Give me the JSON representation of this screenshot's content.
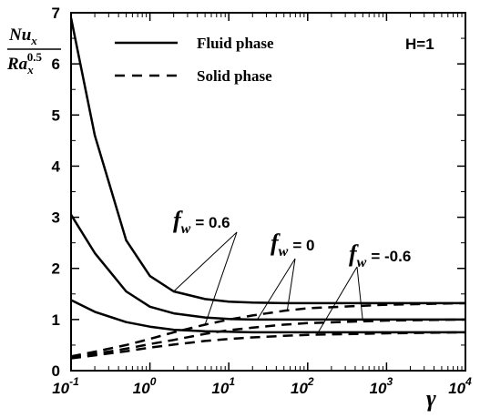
{
  "chart_data": {
    "type": "line",
    "xscale": "log",
    "xlim": [
      0.1,
      10000
    ],
    "ylim": [
      0,
      7
    ],
    "xlabel": "γ",
    "ylabel": {
      "numerator": "Nu",
      "numerator_sub": "x",
      "denominator": "Ra",
      "denominator_sub": "x",
      "denominator_sup": "0.5"
    },
    "yticks": [
      0,
      1,
      2,
      3,
      4,
      5,
      6,
      7
    ],
    "xticks": [
      {
        "value": 0.1,
        "base": "10",
        "exp": "-1"
      },
      {
        "value": 1,
        "base": "10",
        "exp": "0"
      },
      {
        "value": 10,
        "base": "10",
        "exp": "1"
      },
      {
        "value": 100,
        "base": "10",
        "exp": "2"
      },
      {
        "value": 1000,
        "base": "10",
        "exp": "3"
      },
      {
        "value": 10000,
        "base": "10",
        "exp": "4"
      }
    ],
    "legend": {
      "position": "top-left",
      "entries": [
        {
          "label": "Fluid phase",
          "style": "solid"
        },
        {
          "label": "Solid phase",
          "style": "dashed"
        }
      ]
    },
    "parameter_label": "H=1",
    "annotations": [
      {
        "symbol": "f",
        "sub": "w",
        "text": "= 0.6"
      },
      {
        "symbol": "f",
        "sub": "w",
        "text": "= 0"
      },
      {
        "symbol": "f",
        "sub": "w",
        "text": "= -0.6"
      }
    ],
    "x": [
      0.1,
      0.2,
      0.5,
      1,
      2,
      5,
      10,
      20,
      50,
      100,
      1000,
      10000
    ],
    "series": [
      {
        "group": "Fluid phase",
        "style": "solid",
        "fw": "0.6",
        "values": [
          6.9,
          4.6,
          2.55,
          1.85,
          1.55,
          1.4,
          1.35,
          1.33,
          1.32,
          1.32,
          1.32,
          1.32
        ]
      },
      {
        "group": "Fluid phase",
        "style": "solid",
        "fw": "0",
        "values": [
          3.05,
          2.3,
          1.55,
          1.25,
          1.12,
          1.04,
          1.01,
          1.0,
          1.0,
          1.0,
          1.0,
          1.0
        ]
      },
      {
        "group": "Fluid phase",
        "style": "solid",
        "fw": "-0.6",
        "values": [
          1.38,
          1.15,
          0.95,
          0.86,
          0.8,
          0.77,
          0.76,
          0.75,
          0.75,
          0.75,
          0.75,
          0.75
        ]
      },
      {
        "group": "Solid phase",
        "style": "dashed",
        "fw": "0.6",
        "values": [
          0.28,
          0.37,
          0.5,
          0.62,
          0.75,
          0.9,
          1.0,
          1.08,
          1.17,
          1.22,
          1.29,
          1.32
        ]
      },
      {
        "group": "Solid phase",
        "style": "dashed",
        "fw": "0",
        "values": [
          0.26,
          0.33,
          0.43,
          0.52,
          0.6,
          0.72,
          0.79,
          0.84,
          0.9,
          0.93,
          0.98,
          1.0
        ]
      },
      {
        "group": "Solid phase",
        "style": "dashed",
        "fw": "-0.6",
        "values": [
          0.24,
          0.3,
          0.38,
          0.45,
          0.51,
          0.58,
          0.62,
          0.65,
          0.68,
          0.7,
          0.73,
          0.75
        ]
      }
    ]
  }
}
